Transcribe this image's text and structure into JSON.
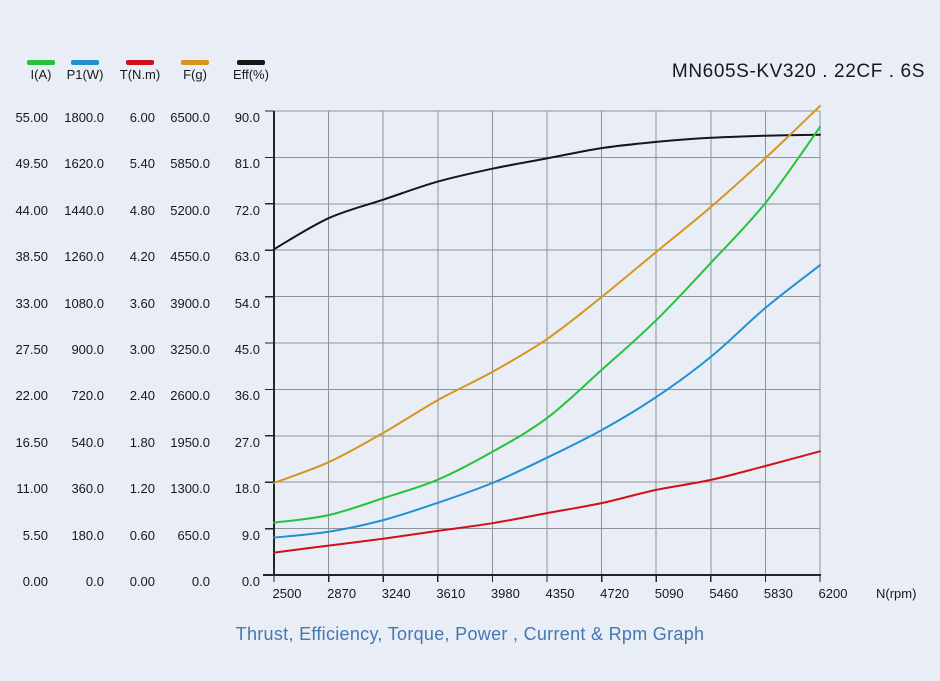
{
  "page": {
    "title": "MN605S-KV320 . 22CF . 6S",
    "caption": "Thrust, Efficiency, Torque, Power , Current & Rpm Graph"
  },
  "colors": {
    "background": "#e9eef6",
    "grid": "#8e9398",
    "axis": "#22262b",
    "title_text": "#16181c",
    "tick_text": "#16181c",
    "caption_text": "#4677af"
  },
  "chart_data": {
    "type": "line",
    "title": "MN605S-KV320 . 22CF . 6S",
    "xlabel": "N(rpm)",
    "grid": true,
    "legend_position": "top-left",
    "x": [
      2500,
      2870,
      3240,
      3610,
      3980,
      4350,
      4720,
      5090,
      5460,
      5830,
      6200
    ],
    "x_tick_labels": [
      "2500",
      "2870",
      "3240",
      "3610",
      "3980",
      "4350",
      "4720",
      "5090",
      "5460",
      "5830",
      "6200"
    ],
    "series": [
      {
        "name": "I(A)",
        "color": "#25c33c",
        "axis_max": 55,
        "axis_ticks_top_to_bottom": [
          "55.00",
          "49.50",
          "44.00",
          "38.50",
          "33.00",
          "27.50",
          "22.00",
          "16.50",
          "11.00",
          "5.50",
          "0.00"
        ],
        "values": [
          6.2,
          7.1,
          9.1,
          11.3,
          14.6,
          18.6,
          24.3,
          30.2,
          37.0,
          44.1,
          53.1
        ]
      },
      {
        "name": "P1(W)",
        "color": "#2191d2",
        "axis_max": 1800,
        "axis_ticks_top_to_bottom": [
          "1800.0",
          "1620.0",
          "1440.0",
          "1260.0",
          "1080.0",
          "900.0",
          "720.0",
          "540.0",
          "360.0",
          "180.0",
          "0.0"
        ],
        "values": [
          145,
          168,
          213,
          280,
          357,
          455,
          562,
          690,
          846,
          1036,
          1202
        ]
      },
      {
        "name": "T(N.m)",
        "color": "#d2101a",
        "axis_max": 6,
        "axis_ticks_top_to_bottom": [
          "6.00",
          "5.40",
          "4.80",
          "4.20",
          "3.60",
          "3.00",
          "2.40",
          "1.80",
          "1.20",
          "0.60",
          "0.00"
        ],
        "values": [
          0.29,
          0.38,
          0.47,
          0.57,
          0.67,
          0.8,
          0.93,
          1.1,
          1.23,
          1.41,
          1.6
        ]
      },
      {
        "name": "F(g)",
        "color": "#d7951d",
        "axis_max": 6500,
        "axis_ticks_top_to_bottom": [
          "6500.0",
          "5850.0",
          "5200.0",
          "4550.0",
          "3900.0",
          "3250.0",
          "2600.0",
          "1950.0",
          "1300.0",
          "650.0",
          "0.0"
        ],
        "values": [
          1290,
          1580,
          1990,
          2450,
          2845,
          3305,
          3895,
          4525,
          5155,
          5840,
          6570
        ]
      },
      {
        "name": "Eff(%)",
        "color": "#161616",
        "axis_max": 90,
        "axis_ticks_top_to_bottom": [
          "90.0",
          "81.0",
          "72.0",
          "63.0",
          "54.0",
          "45.0",
          "36.0",
          "27.0",
          "18.0",
          "9.0",
          "0.0"
        ],
        "values": [
          63.2,
          69.2,
          72.8,
          76.3,
          78.8,
          80.8,
          82.8,
          84.0,
          84.8,
          85.2,
          85.4
        ]
      }
    ]
  }
}
